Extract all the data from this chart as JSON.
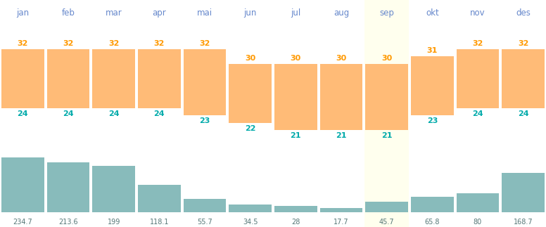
{
  "months": [
    "jan",
    "feb",
    "mar",
    "apr",
    "mai",
    "jun",
    "jul",
    "aug",
    "sep",
    "okt",
    "nov",
    "des"
  ],
  "temp_max": [
    32,
    32,
    32,
    32,
    32,
    30,
    30,
    30,
    30,
    31,
    32,
    32
  ],
  "temp_min": [
    24,
    24,
    24,
    24,
    23,
    22,
    21,
    21,
    21,
    23,
    24,
    24
  ],
  "rainfall": [
    234.7,
    213.6,
    199,
    118.1,
    55.7,
    34.5,
    28,
    17.7,
    45.7,
    65.8,
    80,
    168.7
  ],
  "temp_bar_color": "#FFBB77",
  "rainfall_bar_color": "#88BBBB",
  "month_label_color": "#6688CC",
  "temp_max_color": "#FF9900",
  "temp_min_color": "#00AAAA",
  "rainfall_label_color": "#557777",
  "sep_bg_color": "#FFFFEE",
  "bg_color": "#FFFFFF",
  "max_rainfall": 240,
  "figwidth": 7.76,
  "figheight": 3.23,
  "dpi": 100
}
